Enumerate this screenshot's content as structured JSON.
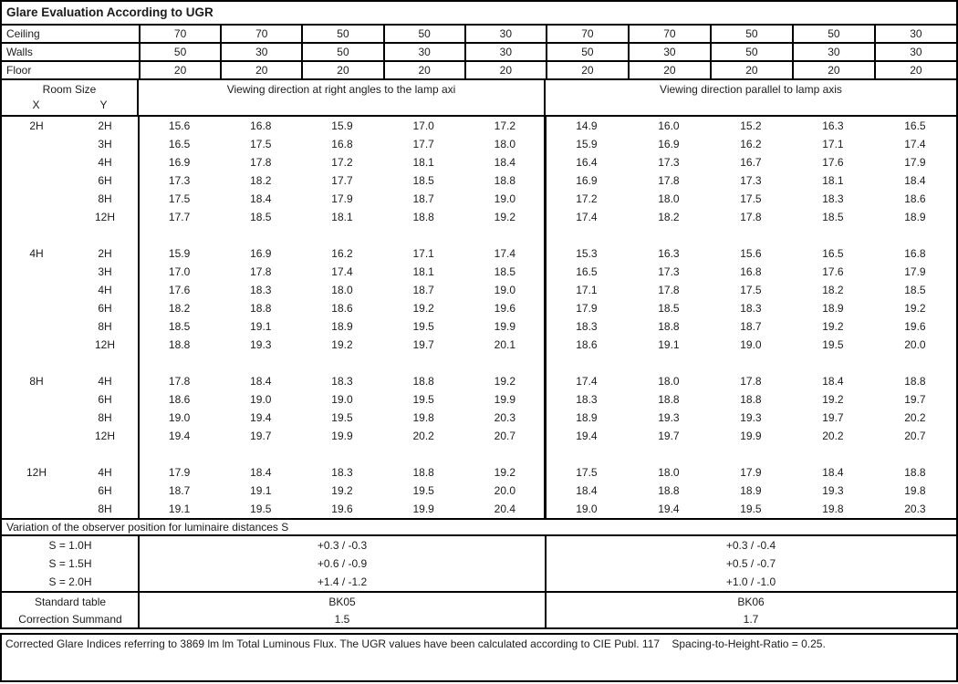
{
  "title": "Glare Evaluation According to UGR",
  "surface_rows": [
    {
      "label": "Ceiling",
      "values": [
        "70",
        "70",
        "50",
        "50",
        "30",
        "70",
        "70",
        "50",
        "50",
        "30"
      ]
    },
    {
      "label": "Walls",
      "values": [
        "50",
        "30",
        "50",
        "30",
        "30",
        "50",
        "30",
        "50",
        "30",
        "30"
      ]
    },
    {
      "label": "Floor",
      "values": [
        "20",
        "20",
        "20",
        "20",
        "20",
        "20",
        "20",
        "20",
        "20",
        "20"
      ]
    }
  ],
  "header": {
    "room_size": "Room Size",
    "x": "X",
    "y": "Y",
    "left_heading": "Viewing direction at right angles to the lamp axi",
    "right_heading": "Viewing direction parallel to lamp axis"
  },
  "body_blocks": [
    {
      "x": "2H",
      "rows": [
        {
          "y": "2H",
          "values": [
            "15.6",
            "16.8",
            "15.9",
            "17.0",
            "17.2",
            "14.9",
            "16.0",
            "15.2",
            "16.3",
            "16.5"
          ]
        },
        {
          "y": "3H",
          "values": [
            "16.5",
            "17.5",
            "16.8",
            "17.7",
            "18.0",
            "15.9",
            "16.9",
            "16.2",
            "17.1",
            "17.4"
          ]
        },
        {
          "y": "4H",
          "values": [
            "16.9",
            "17.8",
            "17.2",
            "18.1",
            "18.4",
            "16.4",
            "17.3",
            "16.7",
            "17.6",
            "17.9"
          ]
        },
        {
          "y": "6H",
          "values": [
            "17.3",
            "18.2",
            "17.7",
            "18.5",
            "18.8",
            "16.9",
            "17.8",
            "17.3",
            "18.1",
            "18.4"
          ]
        },
        {
          "y": "8H",
          "values": [
            "17.5",
            "18.4",
            "17.9",
            "18.7",
            "19.0",
            "17.2",
            "18.0",
            "17.5",
            "18.3",
            "18.6"
          ]
        },
        {
          "y": "12H",
          "values": [
            "17.7",
            "18.5",
            "18.1",
            "18.8",
            "19.2",
            "17.4",
            "18.2",
            "17.8",
            "18.5",
            "18.9"
          ]
        }
      ]
    },
    {
      "x": "4H",
      "rows": [
        {
          "y": "2H",
          "values": [
            "15.9",
            "16.9",
            "16.2",
            "17.1",
            "17.4",
            "15.3",
            "16.3",
            "15.6",
            "16.5",
            "16.8"
          ]
        },
        {
          "y": "3H",
          "values": [
            "17.0",
            "17.8",
            "17.4",
            "18.1",
            "18.5",
            "16.5",
            "17.3",
            "16.8",
            "17.6",
            "17.9"
          ]
        },
        {
          "y": "4H",
          "values": [
            "17.6",
            "18.3",
            "18.0",
            "18.7",
            "19.0",
            "17.1",
            "17.8",
            "17.5",
            "18.2",
            "18.5"
          ]
        },
        {
          "y": "6H",
          "values": [
            "18.2",
            "18.8",
            "18.6",
            "19.2",
            "19.6",
            "17.9",
            "18.5",
            "18.3",
            "18.9",
            "19.2"
          ]
        },
        {
          "y": "8H",
          "values": [
            "18.5",
            "19.1",
            "18.9",
            "19.5",
            "19.9",
            "18.3",
            "18.8",
            "18.7",
            "19.2",
            "19.6"
          ]
        },
        {
          "y": "12H",
          "values": [
            "18.8",
            "19.3",
            "19.2",
            "19.7",
            "20.1",
            "18.6",
            "19.1",
            "19.0",
            "19.5",
            "20.0"
          ]
        }
      ]
    },
    {
      "x": "8H",
      "rows": [
        {
          "y": "4H",
          "values": [
            "17.8",
            "18.4",
            "18.3",
            "18.8",
            "19.2",
            "17.4",
            "18.0",
            "17.8",
            "18.4",
            "18.8"
          ]
        },
        {
          "y": "6H",
          "values": [
            "18.6",
            "19.0",
            "19.0",
            "19.5",
            "19.9",
            "18.3",
            "18.8",
            "18.8",
            "19.2",
            "19.7"
          ]
        },
        {
          "y": "8H",
          "values": [
            "19.0",
            "19.4",
            "19.5",
            "19.8",
            "20.3",
            "18.9",
            "19.3",
            "19.3",
            "19.7",
            "20.2"
          ]
        },
        {
          "y": "12H",
          "values": [
            "19.4",
            "19.7",
            "19.9",
            "20.2",
            "20.7",
            "19.4",
            "19.7",
            "19.9",
            "20.2",
            "20.7"
          ]
        }
      ]
    },
    {
      "x": "12H",
      "rows": [
        {
          "y": "4H",
          "values": [
            "17.9",
            "18.4",
            "18.3",
            "18.8",
            "19.2",
            "17.5",
            "18.0",
            "17.9",
            "18.4",
            "18.8"
          ]
        },
        {
          "y": "6H",
          "values": [
            "18.7",
            "19.1",
            "19.2",
            "19.5",
            "20.0",
            "18.4",
            "18.8",
            "18.9",
            "19.3",
            "19.8"
          ]
        },
        {
          "y": "8H",
          "values": [
            "19.1",
            "19.5",
            "19.6",
            "19.9",
            "20.4",
            "19.0",
            "19.4",
            "19.5",
            "19.8",
            "20.3"
          ]
        }
      ]
    }
  ],
  "variation": {
    "heading": "Variation of the observer position for luminaire distances S",
    "rows": [
      {
        "label": "S = 1.0H",
        "left": "+0.3 / -0.3",
        "right": "+0.3 / -0.4"
      },
      {
        "label": "S = 1.5H",
        "left": "+0.6 / -0.9",
        "right": "+0.5 / -0.7"
      },
      {
        "label": "S = 2.0H",
        "left": "+1.4 / -1.2",
        "right": "+1.0 / -1.0"
      }
    ]
  },
  "summary_rows": [
    {
      "label": "Standard table",
      "left": "BK05",
      "right": "BK06"
    },
    {
      "label": "Correction Summand",
      "left": "1.5",
      "right": "1.7"
    }
  ],
  "footer": "Corrected Glare Indices referring to 3869 lm lm Total Luminous Flux. The UGR values have been calculated according to CIE Publ. 117    Spacing-to-Height-Ratio = 0.25."
}
